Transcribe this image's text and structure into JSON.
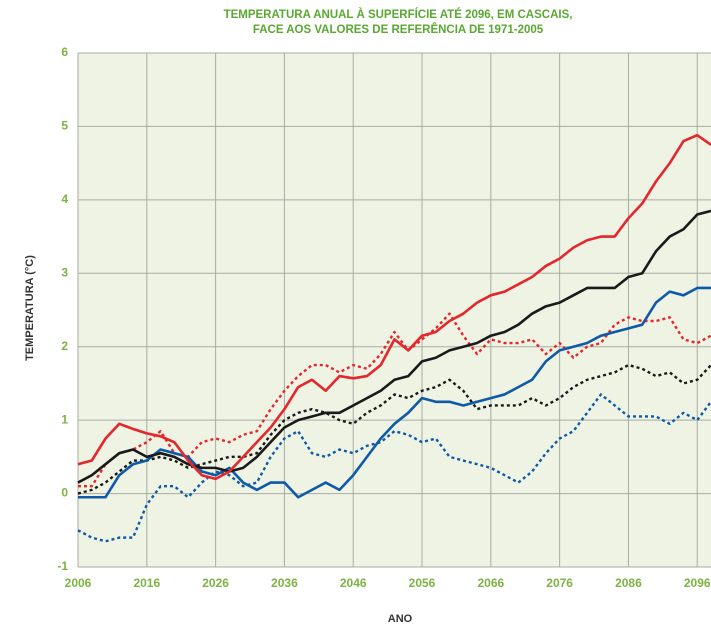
{
  "chart_data": {
    "type": "line",
    "title": [
      "TEMPERATURA ANUAL À SUPERFÍCIE ATÉ 2096, EM CASCAIS,",
      "FACE AOS VALORES DE REFERÊNCIA DE 1971-2005"
    ],
    "xlabel": "ANO",
    "ylabel": "TEMPERATURA (°C)",
    "x": [
      2006,
      2008,
      2010,
      2012,
      2014,
      2016,
      2018,
      2020,
      2022,
      2024,
      2026,
      2028,
      2030,
      2032,
      2034,
      2036,
      2038,
      2040,
      2042,
      2044,
      2046,
      2048,
      2050,
      2052,
      2054,
      2056,
      2058,
      2060,
      2062,
      2064,
      2066,
      2068,
      2070,
      2072,
      2074,
      2076,
      2078,
      2080,
      2082,
      2084,
      2086,
      2088,
      2090,
      2092,
      2094,
      2096,
      2098
    ],
    "xlim": [
      2006,
      2098
    ],
    "xticks": [
      2006,
      2016,
      2026,
      2036,
      2046,
      2056,
      2066,
      2076,
      2086,
      2096
    ],
    "ylim": [
      -1,
      6
    ],
    "yticks": [
      -1,
      0,
      1,
      2,
      3,
      4,
      5,
      6
    ],
    "grid": true,
    "series": [
      {
        "color": "#e5262b",
        "dashed": true,
        "values": [
          0.1,
          0.1,
          0.4,
          0.55,
          0.6,
          0.7,
          0.85,
          0.55,
          0.5,
          0.7,
          0.75,
          0.7,
          0.8,
          0.85,
          1.15,
          1.4,
          1.6,
          1.75,
          1.75,
          1.65,
          1.75,
          1.7,
          1.9,
          2.2,
          1.95,
          2.1,
          2.25,
          2.45,
          2.15,
          1.9,
          2.1,
          2.05,
          2.05,
          2.1,
          1.9,
          2.05,
          1.85,
          2.0,
          2.05,
          2.3,
          2.4,
          2.35,
          2.35,
          2.4,
          2.1,
          2.05,
          2.15
        ]
      },
      {
        "color": "#1a1a1a",
        "dashed": true,
        "values": [
          0.0,
          0.05,
          0.15,
          0.3,
          0.45,
          0.45,
          0.5,
          0.45,
          0.35,
          0.4,
          0.45,
          0.5,
          0.5,
          0.55,
          0.8,
          1.0,
          1.1,
          1.15,
          1.1,
          1.0,
          0.95,
          1.1,
          1.2,
          1.35,
          1.3,
          1.4,
          1.45,
          1.55,
          1.4,
          1.15,
          1.2,
          1.2,
          1.2,
          1.3,
          1.2,
          1.3,
          1.45,
          1.55,
          1.6,
          1.65,
          1.75,
          1.7,
          1.6,
          1.65,
          1.5,
          1.55,
          1.75
        ]
      },
      {
        "color": "#0f5aa6",
        "dashed": true,
        "values": [
          -0.5,
          -0.6,
          -0.65,
          -0.6,
          -0.6,
          -0.15,
          0.1,
          0.1,
          -0.05,
          0.15,
          0.3,
          0.25,
          0.1,
          0.15,
          0.5,
          0.75,
          0.85,
          0.55,
          0.5,
          0.6,
          0.55,
          0.65,
          0.7,
          0.85,
          0.8,
          0.7,
          0.75,
          0.5,
          0.45,
          0.4,
          0.35,
          0.25,
          0.15,
          0.3,
          0.55,
          0.75,
          0.85,
          1.1,
          1.35,
          1.2,
          1.05,
          1.05,
          1.05,
          0.95,
          1.1,
          1.0,
          1.25
        ]
      },
      {
        "color": "#0f5aa6",
        "dashed": false,
        "values": [
          -0.05,
          -0.05,
          -0.05,
          0.25,
          0.4,
          0.45,
          0.6,
          0.55,
          0.5,
          0.3,
          0.25,
          0.35,
          0.15,
          0.05,
          0.15,
          0.15,
          -0.05,
          0.05,
          0.15,
          0.05,
          0.25,
          0.5,
          0.75,
          0.95,
          1.1,
          1.3,
          1.25,
          1.25,
          1.2,
          1.25,
          1.3,
          1.35,
          1.45,
          1.55,
          1.8,
          1.95,
          2.0,
          2.05,
          2.15,
          2.2,
          2.25,
          2.3,
          2.6,
          2.75,
          2.7,
          2.8,
          2.8
        ]
      },
      {
        "color": "#1a1a1a",
        "dashed": false,
        "values": [
          0.15,
          0.25,
          0.4,
          0.55,
          0.6,
          0.5,
          0.55,
          0.5,
          0.4,
          0.35,
          0.35,
          0.3,
          0.35,
          0.5,
          0.7,
          0.9,
          1.0,
          1.05,
          1.1,
          1.1,
          1.2,
          1.3,
          1.4,
          1.55,
          1.6,
          1.8,
          1.85,
          1.95,
          2.0,
          2.05,
          2.15,
          2.2,
          2.3,
          2.45,
          2.55,
          2.6,
          2.7,
          2.8,
          2.8,
          2.8,
          2.95,
          3.0,
          3.3,
          3.5,
          3.6,
          3.8,
          3.85
        ]
      },
      {
        "color": "#e5262b",
        "dashed": false,
        "values": [
          0.4,
          0.45,
          0.75,
          0.95,
          0.88,
          0.82,
          0.78,
          0.7,
          0.45,
          0.25,
          0.2,
          0.3,
          0.5,
          0.7,
          0.9,
          1.15,
          1.45,
          1.55,
          1.4,
          1.6,
          1.57,
          1.6,
          1.75,
          2.1,
          1.95,
          2.15,
          2.2,
          2.35,
          2.45,
          2.6,
          2.7,
          2.75,
          2.85,
          2.95,
          3.1,
          3.2,
          3.35,
          3.45,
          3.5,
          3.5,
          3.75,
          3.95,
          4.25,
          4.5,
          4.8,
          4.88,
          4.75
        ]
      }
    ]
  }
}
